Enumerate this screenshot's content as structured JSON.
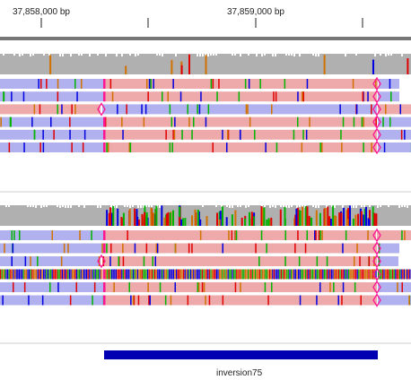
{
  "ruler": {
    "tick_labels": [
      "37,858,000 bp",
      "37,859,000 bp"
    ]
  },
  "feature": {
    "label": "inversion75",
    "color": "#0000b3"
  },
  "colors": {
    "coverage": "#b0b0b0",
    "forward_read": "#b1b1f0",
    "reverse_read": "#eeaaaa",
    "clip_marker": "#ff1493",
    "mismatch_A": "#00b400",
    "mismatch_C": "#0000e0",
    "mismatch_G": "#d17100",
    "mismatch_T": "#e00000"
  }
}
